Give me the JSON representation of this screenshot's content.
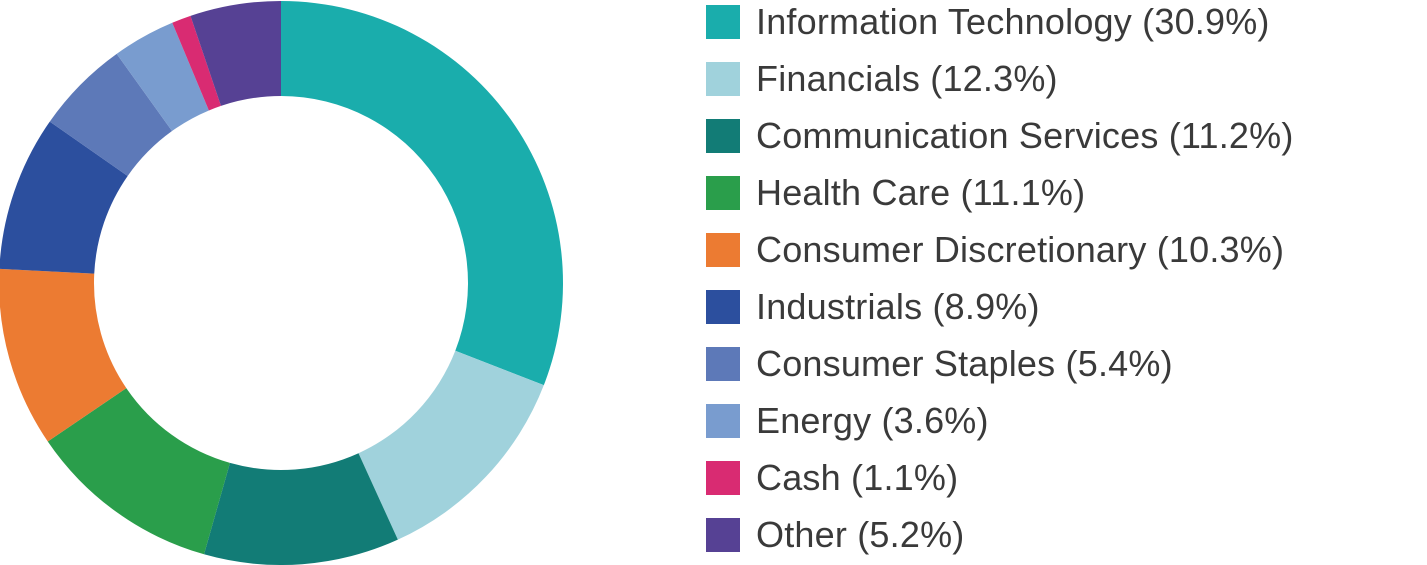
{
  "chart_data": {
    "type": "pie",
    "donut": true,
    "legend_position": "right",
    "title": "",
    "slices": [
      {
        "label": "Information Technology (30.9%)",
        "value": 30.9,
        "color": "#1aadac"
      },
      {
        "label": "Financials (12.3%)",
        "value": 12.3,
        "color": "#a0d2dc"
      },
      {
        "label": "Communication Services (11.2%)",
        "value": 11.2,
        "color": "#127c76"
      },
      {
        "label": "Health Care (11.1%)",
        "value": 11.1,
        "color": "#2a9e4b"
      },
      {
        "label": "Consumer Discretionary (10.3%)",
        "value": 10.3,
        "color": "#ec7b32"
      },
      {
        "label": "Industrials (8.9%)",
        "value": 8.9,
        "color": "#2c4f9e"
      },
      {
        "label": "Consumer Staples (5.4%)",
        "value": 5.4,
        "color": "#5d79b8"
      },
      {
        "label": "Energy (3.6%)",
        "value": 3.6,
        "color": "#799ccf"
      },
      {
        "label": "Cash (1.1%)",
        "value": 1.1,
        "color": "#d92b72"
      },
      {
        "label": "Other (5.2%)",
        "value": 5.2,
        "color": "#564194"
      }
    ]
  }
}
